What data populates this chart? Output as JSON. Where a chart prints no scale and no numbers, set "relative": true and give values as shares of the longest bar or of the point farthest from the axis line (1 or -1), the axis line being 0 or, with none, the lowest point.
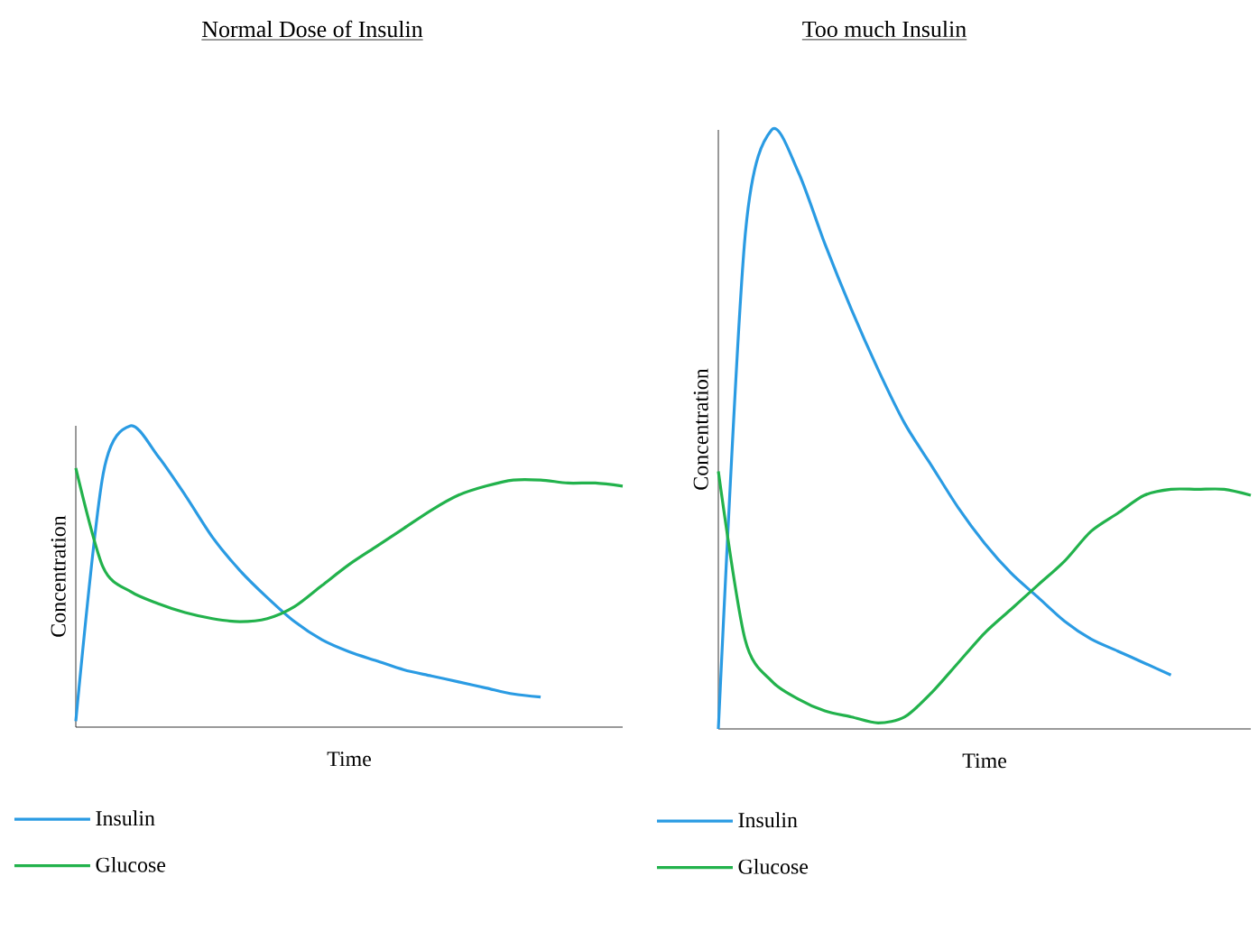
{
  "chart_data": [
    {
      "type": "line",
      "title": "Normal Dose of Insulin",
      "xlabel": "Time",
      "ylabel": "Concentration",
      "relative": true,
      "legend": "bottom",
      "categories": [
        null,
        null,
        null,
        null,
        null,
        null,
        null,
        null,
        null,
        null,
        null,
        null,
        null,
        null,
        null,
        null,
        null,
        null,
        null,
        null,
        null
      ],
      "series": [
        {
          "name": "Insulin",
          "color": "#2a9be3",
          "values": [
            0.02,
            0.84,
            1.0,
            0.9,
            0.77,
            0.63,
            0.52,
            0.43,
            0.35,
            0.29,
            0.25,
            0.22,
            0.19,
            0.17,
            0.15,
            0.13,
            0.11,
            0.1,
            null,
            null,
            null
          ]
        },
        {
          "name": "Glucose",
          "color": "#22b24c",
          "values": [
            0.86,
            0.53,
            0.45,
            0.41,
            0.38,
            0.36,
            0.35,
            0.36,
            0.4,
            0.47,
            0.54,
            0.6,
            0.66,
            0.72,
            0.77,
            0.8,
            0.82,
            0.82,
            0.81,
            0.81,
            0.8
          ]
        }
      ]
    },
    {
      "type": "line",
      "title": "Too much Insulin",
      "xlabel": "Time",
      "ylabel": "Concentration",
      "relative": true,
      "legend": "bottom",
      "categories": [
        null,
        null,
        null,
        null,
        null,
        null,
        null,
        null,
        null,
        null,
        null,
        null,
        null,
        null,
        null,
        null,
        null,
        null,
        null,
        null,
        null
      ],
      "series": [
        {
          "name": "Insulin",
          "color": "#2a9be3",
          "values": [
            0.0,
            0.82,
            1.0,
            0.93,
            0.81,
            0.7,
            0.6,
            0.51,
            0.44,
            0.37,
            0.31,
            0.26,
            0.22,
            0.18,
            0.15,
            0.13,
            0.11,
            0.09,
            null,
            null,
            null
          ]
        },
        {
          "name": "Glucose",
          "color": "#22b24c",
          "values": [
            0.43,
            0.15,
            0.08,
            0.05,
            0.03,
            0.02,
            0.01,
            0.02,
            0.06,
            0.11,
            0.16,
            0.2,
            0.24,
            0.28,
            0.33,
            0.36,
            0.39,
            0.4,
            0.4,
            0.4,
            0.39
          ]
        }
      ]
    }
  ]
}
